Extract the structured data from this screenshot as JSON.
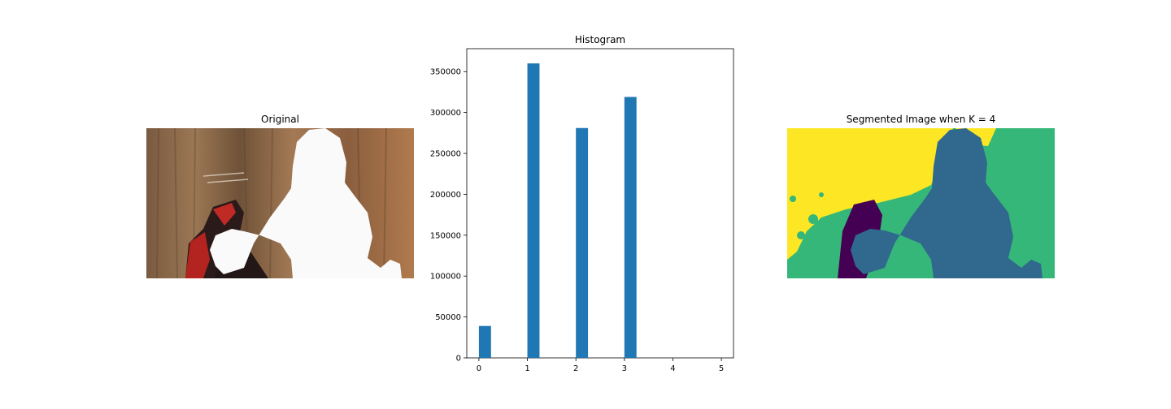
{
  "panels": {
    "left_title": "Original",
    "right_title": "Segmented Image when K = 4"
  },
  "segmentation_colors": [
    "#440154",
    "#31688e",
    "#35b779",
    "#fde725"
  ],
  "chart_data": {
    "type": "bar",
    "title": "Histogram",
    "xlabel": "",
    "ylabel": "",
    "x": [
      0,
      1,
      2,
      3
    ],
    "values": [
      39000,
      360000,
      281000,
      319000
    ],
    "bar_width": 0.25,
    "xlim": [
      -0.25,
      5.25
    ],
    "ylim": [
      0,
      378000
    ],
    "x_ticks": [
      0,
      1,
      2,
      3,
      4,
      5
    ],
    "y_ticks": [
      0,
      50000,
      100000,
      150000,
      200000,
      250000,
      300000,
      350000
    ],
    "bar_color": "#1f77b4"
  }
}
